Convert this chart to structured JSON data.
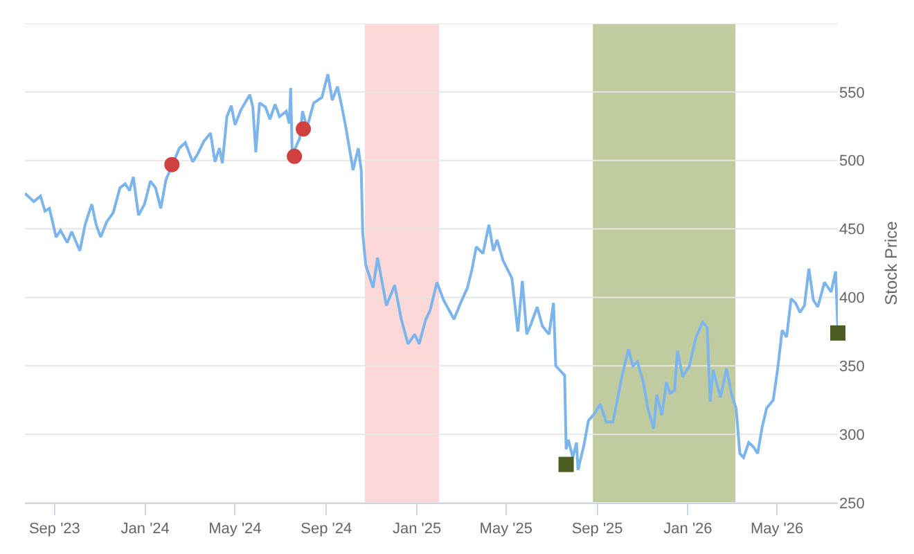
{
  "chart_data": {
    "type": "line",
    "ylabel": "Stock Price",
    "xlim": [
      "2023-07-23",
      "2026-07-22"
    ],
    "xticks": [
      {
        "value": "2023-09-01",
        "label": "Sep '23"
      },
      {
        "value": "2024-01-01",
        "label": "Jan '24"
      },
      {
        "value": "2024-05-01",
        "label": "May '24"
      },
      {
        "value": "2024-09-01",
        "label": "Sep '24"
      },
      {
        "value": "2025-01-01",
        "label": "Jan '25"
      },
      {
        "value": "2025-05-01",
        "label": "May '25"
      },
      {
        "value": "2025-09-01",
        "label": "Sep '25"
      },
      {
        "value": "2026-01-01",
        "label": "Jan '26"
      },
      {
        "value": "2026-05-01",
        "label": "May '26"
      }
    ],
    "ylim": [
      250,
      600
    ],
    "yticks": [
      250,
      300,
      350,
      400,
      450,
      500,
      550,
      {
        "value": 600,
        "label": null
      }
    ],
    "grid": "y",
    "bands": [
      {
        "axis": "x",
        "from": "2024-10-23",
        "to": "2025-01-31",
        "color": "#fdd8d8"
      },
      {
        "axis": "x",
        "from": "2025-08-26",
        "to": "2026-03-06",
        "color": "#c0cca0"
      }
    ],
    "series": [
      {
        "color": "#7cb5ec",
        "marker": "none",
        "line_style": "solid",
        "x": [
          "2023-07-23",
          "2023-08-04",
          "2023-08-13",
          "2023-08-19",
          "2023-08-25",
          "2023-09-03",
          "2023-09-09",
          "2023-09-18",
          "2023-09-24",
          "2023-10-05",
          "2023-10-12",
          "2023-10-21",
          "2023-10-27",
          "2023-11-02",
          "2023-11-10",
          "2023-11-19",
          "2023-11-28",
          "2023-12-05",
          "2023-12-11",
          "2023-12-16",
          "2023-12-23",
          "2023-12-31",
          "2024-01-08",
          "2024-01-15",
          "2024-01-22",
          "2024-01-29",
          "2024-02-06",
          "2024-02-16",
          "2024-02-24",
          "2024-03-05",
          "2024-03-11",
          "2024-03-20",
          "2024-03-29",
          "2024-04-04",
          "2024-04-10",
          "2024-04-14",
          "2024-04-20",
          "2024-04-26",
          "2024-05-01",
          "2024-05-09",
          "2024-05-21",
          "2024-05-25",
          "2024-05-29",
          "2024-06-03",
          "2024-06-11",
          "2024-06-17",
          "2024-06-24",
          "2024-06-30",
          "2024-07-09",
          "2024-07-13",
          "2024-07-15",
          "2024-07-17",
          "2024-07-27",
          "2024-07-31",
          "2024-08-06",
          "2024-08-15",
          "2024-08-26",
          "2024-09-03",
          "2024-09-09",
          "2024-09-16",
          "2024-09-22",
          "2024-09-28",
          "2024-10-07",
          "2024-10-14",
          "2024-10-18",
          "2024-10-20",
          "2024-10-24",
          "2024-11-03",
          "2024-11-09",
          "2024-11-21",
          "2024-12-02",
          "2024-12-11",
          "2024-12-20",
          "2024-12-29",
          "2025-01-04",
          "2025-01-13",
          "2025-01-19",
          "2025-01-28",
          "2025-02-06",
          "2025-02-20",
          "2025-03-01",
          "2025-03-10",
          "2025-03-16",
          "2025-03-22",
          "2025-03-31",
          "2025-04-08",
          "2025-04-14",
          "2025-04-19",
          "2025-04-27",
          "2025-05-09",
          "2025-05-17",
          "2025-05-23",
          "2025-05-29",
          "2025-06-04",
          "2025-06-12",
          "2025-06-19",
          "2025-06-28",
          "2025-07-04",
          "2025-07-07",
          "2025-07-19",
          "2025-07-21",
          "2025-07-24",
          "2025-07-30",
          "2025-08-04",
          "2025-08-06",
          "2025-08-14",
          "2025-08-20",
          "2025-08-28",
          "2025-09-05",
          "2025-09-13",
          "2025-09-22",
          "2025-09-28",
          "2025-10-04",
          "2025-10-13",
          "2025-10-19",
          "2025-10-25",
          "2025-11-02",
          "2025-11-08",
          "2025-11-16",
          "2025-11-20",
          "2025-11-27",
          "2025-12-03",
          "2025-12-08",
          "2025-12-14",
          "2025-12-18",
          "2025-12-25",
          "2026-01-03",
          "2026-01-12",
          "2026-01-21",
          "2026-01-27",
          "2026-01-31",
          "2026-02-04",
          "2026-02-14",
          "2026-02-22",
          "2026-03-01",
          "2026-03-07",
          "2026-03-12",
          "2026-03-17",
          "2026-03-24",
          "2026-03-30",
          "2026-04-05",
          "2026-04-11",
          "2026-04-17",
          "2026-04-26",
          "2026-05-02",
          "2026-05-08",
          "2026-05-14",
          "2026-05-20",
          "2026-05-26",
          "2026-06-01",
          "2026-06-07",
          "2026-06-13",
          "2026-06-19",
          "2026-06-25",
          "2026-07-04",
          "2026-07-13",
          "2026-07-19",
          "2026-07-22"
        ],
        "values": [
          476,
          470,
          474,
          463,
          465,
          444,
          449,
          440,
          448,
          434,
          453,
          468,
          453,
          444,
          455,
          462,
          480,
          483,
          478,
          488,
          460,
          468,
          485,
          480,
          465,
          486,
          496,
          509,
          513,
          499,
          504,
          514,
          520,
          499,
          509,
          498,
          532,
          540,
          526,
          537,
          548,
          539,
          506,
          542,
          539,
          530,
          541,
          532,
          536,
          527,
          553,
          504,
          516,
          536,
          524,
          542,
          546,
          563,
          544,
          554,
          539,
          522,
          493,
          509,
          493,
          447,
          424,
          407,
          429,
          394,
          409,
          384,
          366,
          373,
          366,
          384,
          391,
          411,
          398,
          384,
          396,
          407,
          420,
          437,
          432,
          453,
          434,
          442,
          427,
          414,
          375,
          412,
          373,
          381,
          393,
          379,
          373,
          396,
          350,
          343,
          289,
          296,
          283,
          294,
          274,
          292,
          310,
          315,
          322,
          309,
          309,
          325,
          342,
          362,
          350,
          353,
          338,
          319,
          304,
          329,
          314,
          338,
          330,
          332,
          361,
          342,
          350,
          371,
          382,
          378,
          324,
          347,
          327,
          348,
          329,
          319,
          286,
          283,
          294,
          291,
          286,
          305,
          319,
          325,
          348,
          376,
          371,
          399,
          396,
          389,
          394,
          421,
          398,
          393,
          411,
          404,
          419,
          376
        ]
      },
      {
        "type": "scatter",
        "color": "#d04040",
        "marker": "circle",
        "x": [
          "2024-02-06",
          "2024-07-20",
          "2024-08-01"
        ],
        "values": [
          497,
          503,
          523
        ]
      },
      {
        "type": "scatter",
        "color": "#4b5e20",
        "marker": "square",
        "x": [
          "2025-07-21",
          "2026-07-22"
        ],
        "values": [
          278,
          374
        ]
      }
    ]
  }
}
